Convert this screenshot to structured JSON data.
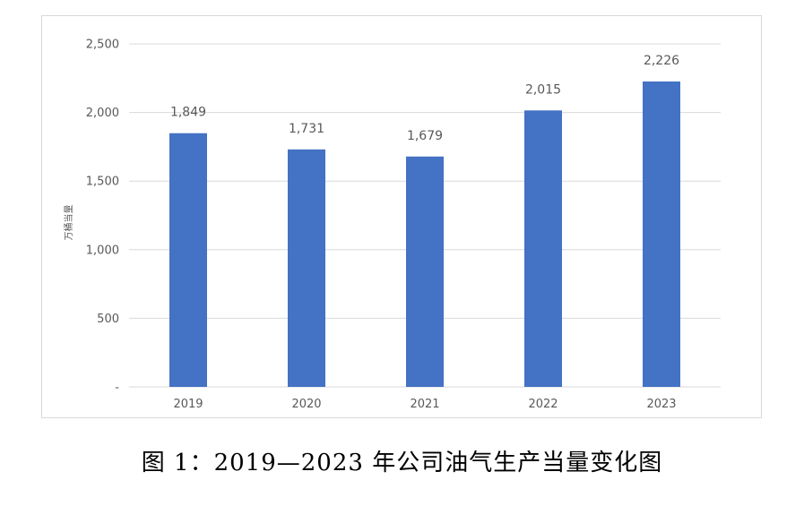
{
  "caption": "图 1：2019—2023 年公司油气生产当量变化图",
  "chart_data": {
    "type": "bar",
    "categories": [
      "2019",
      "2020",
      "2021",
      "2022",
      "2023"
    ],
    "series": [
      {
        "values": [
          1849,
          1731,
          1679,
          2015,
          2226
        ],
        "labels": [
          "1,849",
          "1,731",
          "1,679",
          "2,015",
          "2,226"
        ]
      }
    ],
    "ylabel": "万桶当量",
    "ylim": [
      0,
      2500
    ],
    "yticks": [
      0,
      500,
      1000,
      1500,
      2000,
      2500
    ],
    "ytick_labels": [
      "-",
      "500",
      "1,000",
      "1,500",
      "2,000",
      "2,500"
    ],
    "grid": true,
    "legend": "none",
    "colors": {
      "bar": "#4472c4",
      "grid": "#d9d9d9",
      "text": "#595959"
    }
  }
}
